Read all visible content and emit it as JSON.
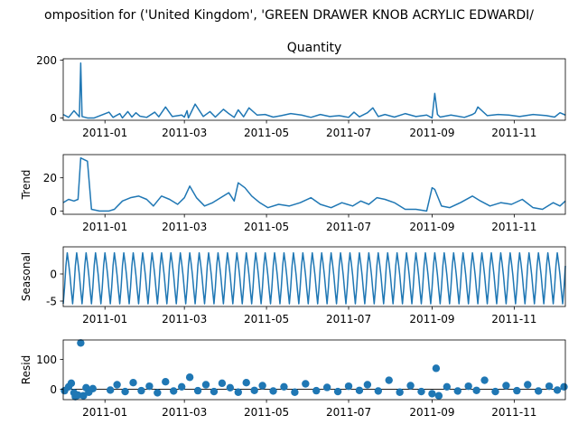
{
  "figure": {
    "suptitle": "omposition for ('United Kingdom', 'GREEN DRAWER KNOB ACRYLIC EDWARDI/",
    "line_color": "#1f77b4"
  },
  "chart_data": [
    {
      "type": "line",
      "title": "Quantity",
      "ylabel": "",
      "x_range": [
        "2010-12-01",
        "2011-12-09"
      ],
      "ylim": [
        -8,
        205
      ],
      "yticks": [
        0,
        200
      ],
      "xticks": [
        "2011-01",
        "2011-03",
        "2011-05",
        "2011-07",
        "2011-09",
        "2011-11"
      ],
      "x": [
        "2010-12-01",
        "2010-12-05",
        "2010-12-09",
        "2010-12-13",
        "2010-12-14",
        "2010-12-15",
        "2010-12-19",
        "2010-12-24",
        "2011-01-04",
        "2011-01-07",
        "2011-01-12",
        "2011-01-14",
        "2011-01-18",
        "2011-01-21",
        "2011-01-24",
        "2011-01-27",
        "2011-02-01",
        "2011-02-07",
        "2011-02-10",
        "2011-02-15",
        "2011-02-20",
        "2011-02-27",
        "2011-03-01",
        "2011-03-03",
        "2011-03-04",
        "2011-03-09",
        "2011-03-15",
        "2011-03-20",
        "2011-03-24",
        "2011-03-30",
        "2011-04-03",
        "2011-04-07",
        "2011-04-10",
        "2011-04-14",
        "2011-04-18",
        "2011-04-24",
        "2011-04-30",
        "2011-05-06",
        "2011-05-12",
        "2011-05-19",
        "2011-05-27",
        "2011-06-03",
        "2011-06-10",
        "2011-06-17",
        "2011-06-24",
        "2011-07-01",
        "2011-07-05",
        "2011-07-09",
        "2011-07-15",
        "2011-07-19",
        "2011-07-23",
        "2011-07-28",
        "2011-08-04",
        "2011-08-12",
        "2011-08-20",
        "2011-08-28",
        "2011-09-01",
        "2011-09-03",
        "2011-09-05",
        "2011-09-07",
        "2011-09-15",
        "2011-09-25",
        "2011-10-01",
        "2011-10-03",
        "2011-10-05",
        "2011-10-12",
        "2011-10-20",
        "2011-10-28",
        "2011-11-05",
        "2011-11-15",
        "2011-11-25",
        "2011-12-01",
        "2011-12-05",
        "2011-12-09"
      ],
      "y": [
        12,
        2,
        25,
        4,
        190,
        5,
        0,
        0,
        20,
        2,
        15,
        0,
        22,
        3,
        18,
        6,
        2,
        20,
        4,
        38,
        5,
        10,
        3,
        25,
        0,
        48,
        5,
        22,
        3,
        30,
        15,
        2,
        28,
        4,
        35,
        10,
        12,
        3,
        8,
        15,
        10,
        2,
        12,
        5,
        8,
        2,
        20,
        4,
        18,
        35,
        5,
        12,
        3,
        15,
        5,
        10,
        0,
        85,
        12,
        3,
        10,
        2,
        12,
        18,
        38,
        8,
        12,
        10,
        5,
        12,
        8,
        3,
        18,
        10
      ]
    },
    {
      "type": "line",
      "title": "",
      "ylabel": "Trend",
      "x_range": [
        "2010-12-01",
        "2011-12-09"
      ],
      "ylim": [
        -2,
        34
      ],
      "yticks": [
        0,
        20
      ],
      "xticks": [
        "2011-01",
        "2011-03",
        "2011-05",
        "2011-07",
        "2011-09",
        "2011-11"
      ],
      "x": [
        "2010-12-01",
        "2010-12-05",
        "2010-12-09",
        "2010-12-12",
        "2010-12-14",
        "2010-12-19",
        "2010-12-22",
        "2010-12-28",
        "2011-01-04",
        "2011-01-08",
        "2011-01-14",
        "2011-01-20",
        "2011-01-26",
        "2011-02-01",
        "2011-02-06",
        "2011-02-12",
        "2011-02-18",
        "2011-02-24",
        "2011-03-01",
        "2011-03-05",
        "2011-03-10",
        "2011-03-16",
        "2011-03-22",
        "2011-03-28",
        "2011-04-03",
        "2011-04-07",
        "2011-04-10",
        "2011-04-15",
        "2011-04-20",
        "2011-04-26",
        "2011-05-02",
        "2011-05-10",
        "2011-05-18",
        "2011-05-26",
        "2011-06-03",
        "2011-06-10",
        "2011-06-18",
        "2011-06-26",
        "2011-07-04",
        "2011-07-10",
        "2011-07-16",
        "2011-07-22",
        "2011-07-28",
        "2011-08-04",
        "2011-08-12",
        "2011-08-20",
        "2011-08-28",
        "2011-09-01",
        "2011-09-03",
        "2011-09-08",
        "2011-09-14",
        "2011-09-22",
        "2011-10-01",
        "2011-10-07",
        "2011-10-14",
        "2011-10-22",
        "2011-10-30",
        "2011-11-07",
        "2011-11-15",
        "2011-11-22",
        "2011-11-30",
        "2011-12-05",
        "2011-12-09"
      ],
      "y": [
        5,
        7,
        6,
        7,
        32,
        30,
        1,
        0,
        0,
        1,
        6,
        8,
        9,
        7,
        3,
        9,
        7,
        4,
        8,
        15,
        8,
        3,
        5,
        8,
        11,
        6,
        17,
        14,
        9,
        5,
        2,
        4,
        3,
        5,
        8,
        4,
        2,
        5,
        3,
        6,
        4,
        8,
        7,
        5,
        1,
        1,
        0,
        14,
        13,
        3,
        2,
        5,
        9,
        6,
        3,
        5,
        4,
        7,
        2,
        1,
        5,
        3,
        6
      ]
    },
    {
      "type": "line",
      "title": "",
      "ylabel": "Seasonal",
      "x_range": [
        "2010-12-01",
        "2011-12-09"
      ],
      "ylim": [
        -6,
        5
      ],
      "yticks": [
        -5,
        0
      ],
      "xticks": [
        "2011-01",
        "2011-03",
        "2011-05",
        "2011-07",
        "2011-09",
        "2011-11"
      ],
      "period_days": 7,
      "pattern": [
        -5.5,
        -2.5,
        1.5,
        3.9,
        2.0,
        -0.2,
        -3.0
      ]
    },
    {
      "type": "scatter",
      "title": "",
      "ylabel": "Resid",
      "x_range": [
        "2010-12-01",
        "2011-12-09"
      ],
      "ylim": [
        -35,
        165
      ],
      "yticks": [
        0,
        100
      ],
      "xticks": [
        "2011-01",
        "2011-03",
        "2011-05",
        "2011-07",
        "2011-09",
        "2011-11"
      ],
      "x": [
        "2010-12-02",
        "2010-12-05",
        "2010-12-07",
        "2010-12-09",
        "2010-12-10",
        "2010-12-12",
        "2010-12-14",
        "2010-12-16",
        "2010-12-18",
        "2010-12-20",
        "2010-12-23",
        "2011-01-05",
        "2011-01-10",
        "2011-01-16",
        "2011-01-22",
        "2011-01-28",
        "2011-02-03",
        "2011-02-09",
        "2011-02-15",
        "2011-02-21",
        "2011-02-27",
        "2011-03-05",
        "2011-03-11",
        "2011-03-17",
        "2011-03-23",
        "2011-03-29",
        "2011-04-04",
        "2011-04-10",
        "2011-04-16",
        "2011-04-22",
        "2011-04-28",
        "2011-05-06",
        "2011-05-14",
        "2011-05-22",
        "2011-05-30",
        "2011-06-07",
        "2011-06-15",
        "2011-06-23",
        "2011-07-01",
        "2011-07-09",
        "2011-07-15",
        "2011-07-23",
        "2011-07-31",
        "2011-08-08",
        "2011-08-16",
        "2011-08-24",
        "2011-09-01",
        "2011-09-04",
        "2011-09-06",
        "2011-09-12",
        "2011-09-20",
        "2011-09-28",
        "2011-10-04",
        "2011-10-10",
        "2011-10-18",
        "2011-10-26",
        "2011-11-03",
        "2011-11-11",
        "2011-11-19",
        "2011-11-27",
        "2011-12-03",
        "2011-12-08"
      ],
      "y": [
        -5,
        8,
        20,
        -12,
        -25,
        -20,
        155,
        -22,
        5,
        -10,
        2,
        -3,
        15,
        -8,
        22,
        -5,
        10,
        -12,
        25,
        -6,
        8,
        40,
        -5,
        15,
        -8,
        20,
        5,
        -10,
        22,
        -4,
        12,
        -6,
        8,
        -10,
        18,
        -5,
        6,
        -8,
        10,
        -4,
        15,
        -6,
        30,
        -10,
        12,
        -8,
        -15,
        70,
        -22,
        8,
        -6,
        10,
        -4,
        30,
        -8,
        12,
        -5,
        15,
        -6,
        10,
        -3,
        8
      ]
    }
  ]
}
